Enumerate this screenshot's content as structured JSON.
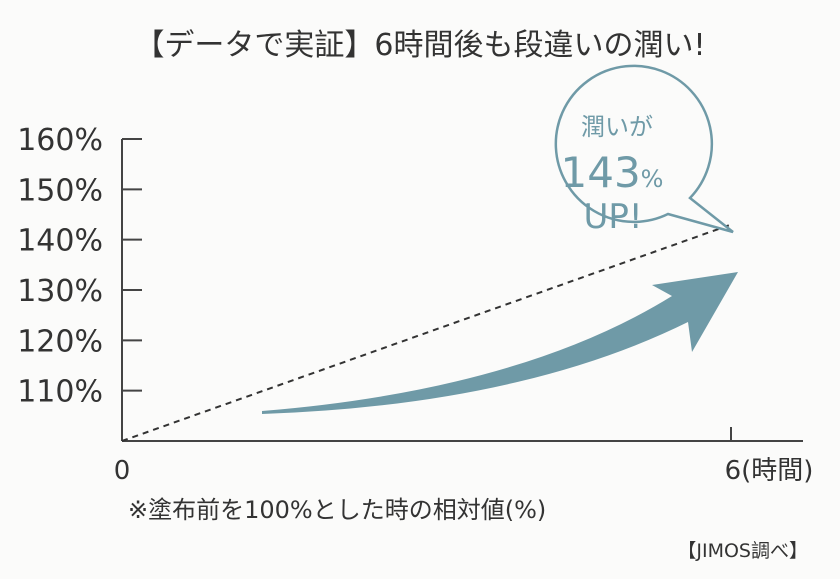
{
  "chart_data": {
    "type": "line",
    "title": "【データで実証】6時間後も段違いの潤い!",
    "x": [
      0,
      6
    ],
    "y": [
      100,
      143
    ],
    "xlim": [
      0,
      6.7
    ],
    "ylim": [
      100,
      160
    ],
    "ytick_labels": [
      "110%",
      "120%",
      "130%",
      "140%",
      "150%",
      "160%"
    ],
    "ytick_values": [
      110,
      120,
      130,
      140,
      150,
      160
    ],
    "xtick_labels": [
      "0",
      "6(時間)"
    ],
    "xtick_values": [
      0,
      6
    ],
    "line_style": "dashed",
    "grid": false,
    "callout": {
      "line1": "潤いが",
      "value": "143",
      "unit": "%",
      "line3": "UP!"
    },
    "note": "※塗布前を100%とした時の相対値(%)",
    "source": "【JIMOS調べ】",
    "colors": {
      "accent": "#6f9aa7",
      "axis": "#444444",
      "text": "#333333"
    }
  }
}
